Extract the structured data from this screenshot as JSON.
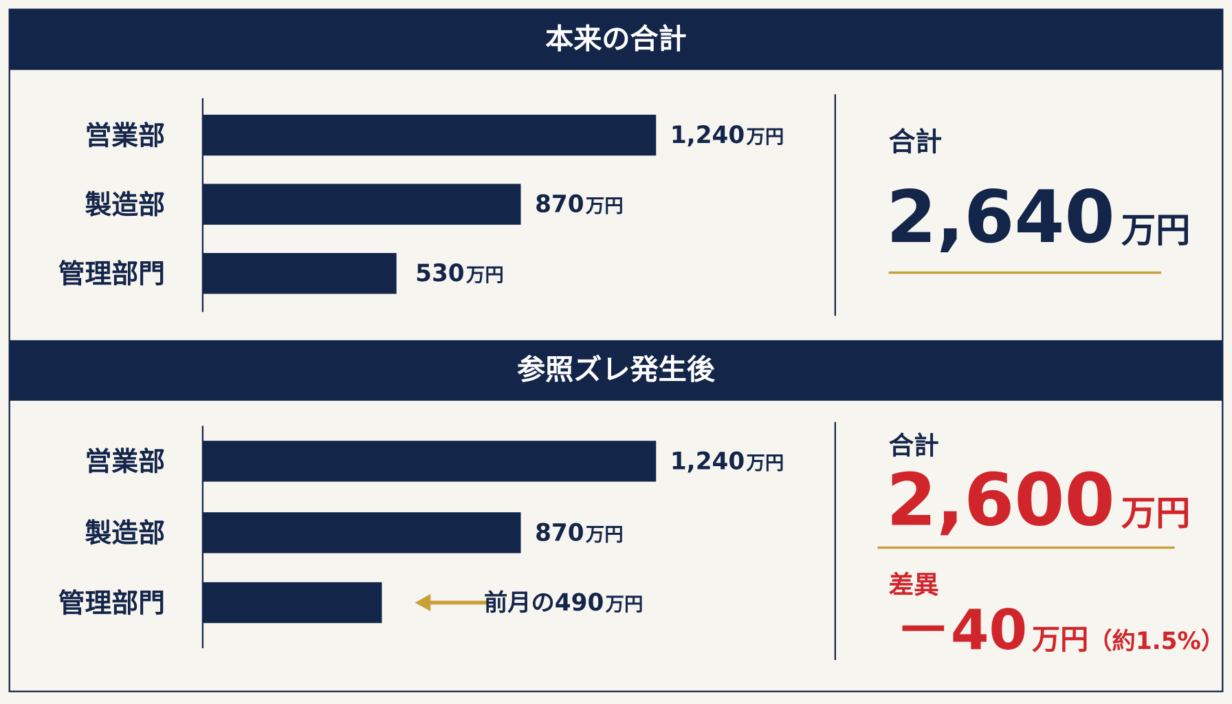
{
  "chart_data": [
    {
      "type": "bar",
      "title": "本来の合計",
      "categories": [
        "営業部",
        "製造部",
        "管理部門"
      ],
      "values": [
        1240,
        870,
        530
      ],
      "value_labels": [
        "1,240",
        "870",
        "530"
      ],
      "unit": "万円",
      "color": "#14254a",
      "total_label": "合計",
      "total": "2,640"
    },
    {
      "type": "bar",
      "title": "参照ズレ発生後",
      "categories": [
        "営業部",
        "製造部",
        "管理部門"
      ],
      "values": [
        1240,
        870,
        490
      ],
      "value_labels": [
        "1,240",
        "870",
        "前月の490"
      ],
      "unit": "万円",
      "color": "#14254a",
      "total_label": "合計",
      "total": "2,600",
      "difference_label": "差異",
      "difference": "－40",
      "difference_note": "（約1.5%）"
    }
  ]
}
